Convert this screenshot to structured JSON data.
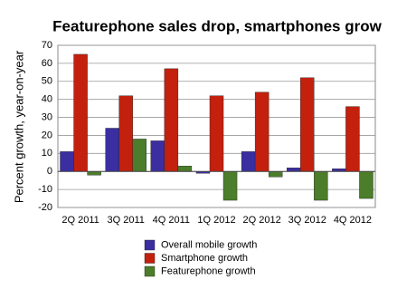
{
  "chart_data": {
    "type": "bar",
    "title": "Featurephone sales drop, smartphones grow",
    "y_label": "Percent growth, year-on-year",
    "categories": [
      "2Q 2011",
      "3Q 2011",
      "4Q 2011",
      "1Q 2012",
      "2Q 2012",
      "3Q 2012",
      "4Q 2012"
    ],
    "series": [
      {
        "name": "Overall mobile growth",
        "color": "#3b2ea0",
        "values": [
          11,
          24,
          17,
          -1,
          11,
          2,
          1.5
        ]
      },
      {
        "name": "Smartphone growth",
        "color": "#c3200e",
        "values": [
          65,
          42,
          57,
          42,
          44,
          52,
          36
        ]
      },
      {
        "name": "Featurephone growth",
        "color": "#4b7d2b",
        "values": [
          -2,
          18,
          3,
          -16,
          -3,
          -16,
          -15
        ]
      }
    ],
    "ylim": [
      -20,
      70
    ],
    "yticks": [
      -20,
      -10,
      0,
      10,
      20,
      30,
      40,
      50,
      60,
      70
    ],
    "grid": true
  }
}
